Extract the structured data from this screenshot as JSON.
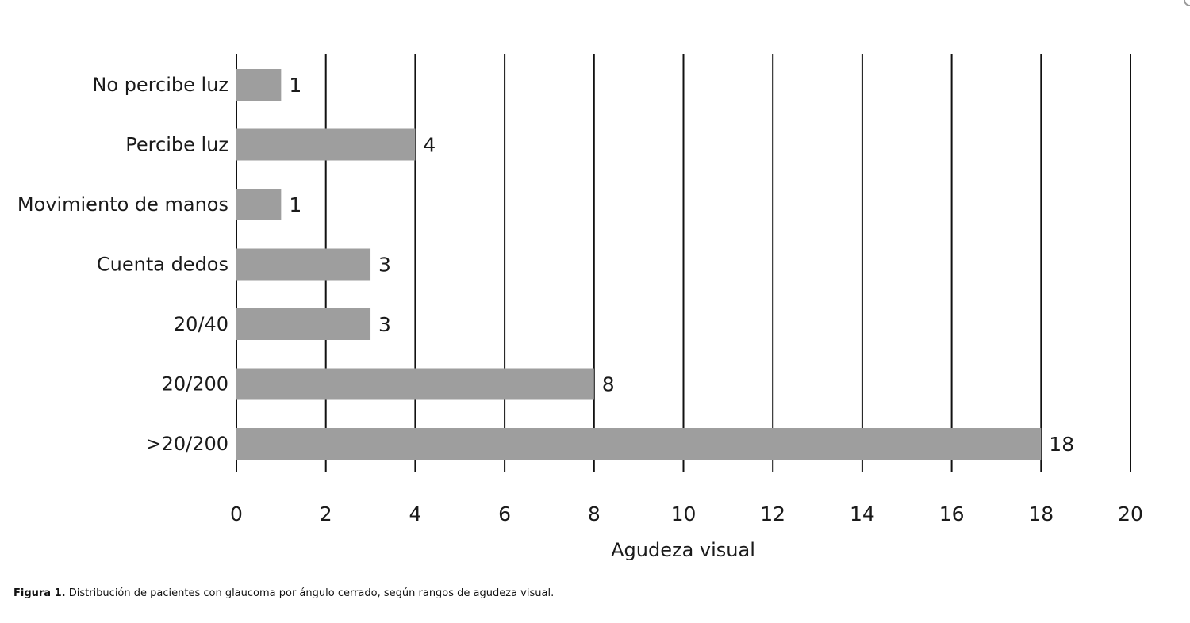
{
  "chart_data": {
    "type": "bar",
    "orientation": "horizontal",
    "categories": [
      "No percibe luz",
      "Percibe luz",
      "Movimiento de manos",
      "Cuenta dedos",
      "20/40",
      "20/200",
      ">20/200"
    ],
    "values": [
      1,
      4,
      1,
      3,
      3,
      8,
      18
    ],
    "data_labels": [
      "1",
      "4",
      "1",
      "3",
      "3",
      "8",
      "18"
    ],
    "xlabel": "Agudeza visual",
    "ylabel": "",
    "xlim": [
      0,
      20
    ],
    "x_ticks": [
      "0",
      "2",
      "4",
      "6",
      "8",
      "10",
      "12",
      "14",
      "16",
      "18",
      "20"
    ],
    "grid": "vertical",
    "bar_color": "#9e9e9e",
    "grid_color": "#111111"
  },
  "caption": {
    "lead": "Figura 1.",
    "text": " Distribución de pacientes con glaucoma por ángulo cerrado, según rangos de agudeza visual."
  }
}
